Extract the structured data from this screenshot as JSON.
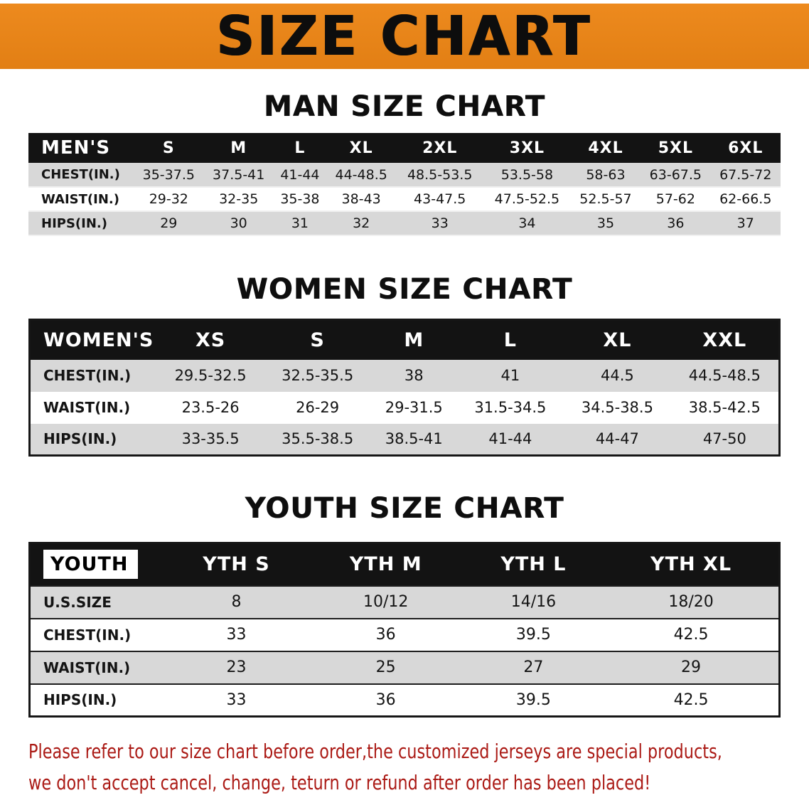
{
  "colors": {
    "banner-bg": "#ED8A1E",
    "banner-bg-dark": "#E27F14",
    "header-bg": "#131313",
    "row-shade": "#D8D8D8",
    "disclaimer-red": "#AB1A15",
    "text-black": "#111111"
  },
  "banner": {
    "title": "SIZE CHART"
  },
  "men": {
    "heading": "MAN SIZE CHART",
    "label": "MEN'S",
    "sizes": [
      "S",
      "M",
      "L",
      "XL",
      "2XL",
      "3XL",
      "4XL",
      "5XL",
      "6XL"
    ],
    "rows": [
      {
        "label": "CHEST(IN.)",
        "values": [
          "35-37.5",
          "37.5-41",
          "41-44",
          "44-48.5",
          "48.5-53.5",
          "53.5-58",
          "58-63",
          "63-67.5",
          "67.5-72"
        ]
      },
      {
        "label": "WAIST(IN.)",
        "values": [
          "29-32",
          "32-35",
          "35-38",
          "38-43",
          "43-47.5",
          "47.5-52.5",
          "52.5-57",
          "57-62",
          "62-66.5"
        ]
      },
      {
        "label": "HIPS(IN.)",
        "values": [
          "29",
          "30",
          "31",
          "32",
          "33",
          "34",
          "35",
          "36",
          "37"
        ]
      }
    ]
  },
  "women": {
    "heading": "WOMEN SIZE CHART",
    "label": "WOMEN'S",
    "sizes": [
      "XS",
      "S",
      "M",
      "L",
      "XL",
      "XXL"
    ],
    "rows": [
      {
        "label": "CHEST(IN.)",
        "values": [
          "29.5-32.5",
          "32.5-35.5",
          "38",
          "41",
          "44.5",
          "44.5-48.5"
        ]
      },
      {
        "label": "WAIST(IN.)",
        "values": [
          "23.5-26",
          "26-29",
          "29-31.5",
          "31.5-34.5",
          "34.5-38.5",
          "38.5-42.5"
        ]
      },
      {
        "label": "HIPS(IN.)",
        "values": [
          "33-35.5",
          "35.5-38.5",
          "38.5-41",
          "41-44",
          "44-47",
          "47-50"
        ]
      }
    ]
  },
  "youth": {
    "heading": "YOUTH SIZE CHART",
    "label": "YOUTH",
    "sizes": [
      "YTH S",
      "YTH M",
      "YTH L",
      "YTH XL"
    ],
    "rows": [
      {
        "label": "U.S.SIZE",
        "values": [
          "8",
          "10/12",
          "14/16",
          "18/20"
        ]
      },
      {
        "label": "CHEST(IN.)",
        "values": [
          "33",
          "36",
          "39.5",
          "42.5"
        ]
      },
      {
        "label": "WAIST(IN.)",
        "values": [
          "23",
          "25",
          "27",
          "29"
        ]
      },
      {
        "label": "HIPS(IN.)",
        "values": [
          "33",
          "36",
          "39.5",
          "42.5"
        ]
      }
    ]
  },
  "disclaimer": {
    "line1": "Please refer to our size chart before order,the customized jerseys are special products,",
    "line2": "we don't accept cancel, change, teturn or refund after order has been placed!"
  }
}
